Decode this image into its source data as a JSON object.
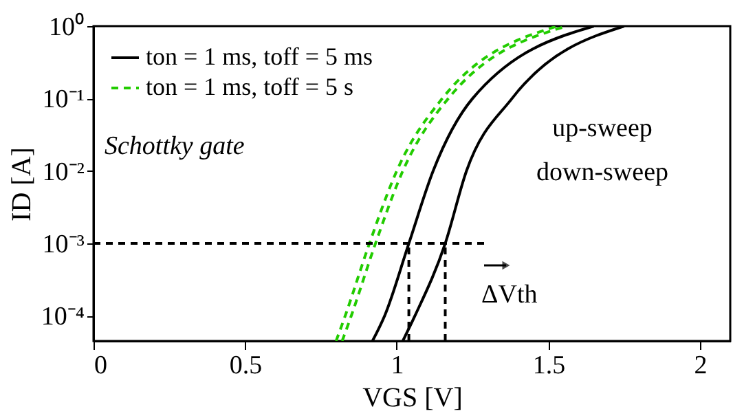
{
  "chart_data": {
    "type": "line",
    "xlabel": "VGS [V]",
    "ylabel": "ID [A]",
    "xlim": [
      0,
      2.1
    ],
    "xticks": [
      0,
      0.5,
      1,
      1.5,
      2
    ],
    "ylim": [
      4.5e-05,
      1
    ],
    "log": "y",
    "yticks": [
      {
        "value": 0.0001,
        "label": "10⁻⁴"
      },
      {
        "value": 0.001,
        "label": "10⁻³"
      },
      {
        "value": 0.01,
        "label": "10⁻²"
      },
      {
        "value": 0.1,
        "label": "10⁻¹"
      },
      {
        "value": 1,
        "label": "10⁰"
      }
    ],
    "grid": false,
    "legend": "top left",
    "annotations": [
      "Schottky gate",
      "up-sweep",
      "down-sweep",
      "ΔVth"
    ],
    "series": [
      {
        "name": "ton = 1 ms, toff = 5 ms",
        "color": "#000000",
        "line_style": "solid",
        "x": [
          0.92,
          0.96,
          1.04,
          1.12,
          1.25,
          1.65
        ],
        "values": [
          4.5e-05,
          0.0001,
          0.001,
          0.01,
          0.1,
          1
        ]
      },
      {
        "color": "#000000",
        "line_style": "solid",
        "x": [
          1.02,
          1.06,
          1.16,
          1.23,
          1.38,
          1.75
        ],
        "values": [
          4.5e-05,
          0.0001,
          0.001,
          0.01,
          0.1,
          1
        ]
      },
      {
        "name": "ton = 1 ms, toff = 5 s",
        "color": "#22cc00",
        "line_style": "dashed",
        "x": [
          0.8,
          0.83,
          0.91,
          1.0,
          1.15,
          1.53
        ],
        "values": [
          4.5e-05,
          0.0001,
          0.001,
          0.01,
          0.1,
          1
        ]
      },
      {
        "color": "#22cc00",
        "line_style": "dashed",
        "x": [
          0.82,
          0.85,
          0.93,
          1.02,
          1.17,
          1.56
        ],
        "values": [
          4.5e-05,
          0.0001,
          0.001,
          0.01,
          0.1,
          1
        ]
      },
      {
        "color": "#000000",
        "line_style": "dashed",
        "x": [
          0,
          1.3
        ],
        "values": [
          0.001,
          0.001
        ]
      },
      {
        "color": "#000000",
        "line_style": "dashed",
        "x": [
          1.04,
          1.04
        ],
        "values": [
          4.5e-05,
          0.001
        ]
      },
      {
        "color": "#000000",
        "line_style": "dashed",
        "x": [
          1.16,
          1.16
        ],
        "values": [
          4.5e-05,
          0.001
        ]
      }
    ]
  }
}
